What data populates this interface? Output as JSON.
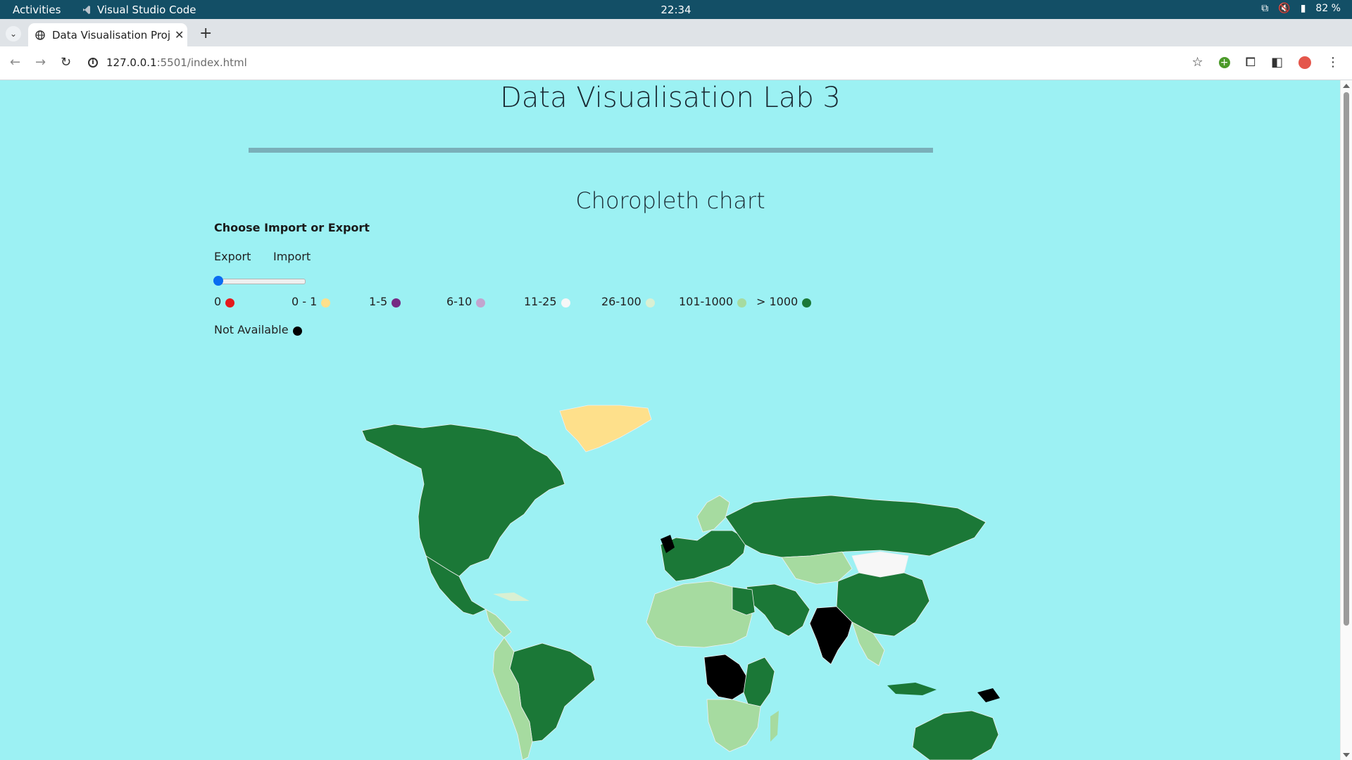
{
  "os": {
    "activities": "Activities",
    "app_name": "Visual Studio Code",
    "clock": "22:34",
    "battery": "82 %"
  },
  "browser": {
    "tab_title": "Data Visualisation Proje",
    "url_host": "127.0.0.1",
    "url_path": ":5501/index.html"
  },
  "page": {
    "title": "Data Visualisation Lab 3",
    "chart_title": "Choropleth chart",
    "choose_label": "Choose Import or Export",
    "option_export": "Export",
    "option_import": "Import",
    "slider_value": 0
  },
  "legend": [
    {
      "label": "0",
      "color": "#e41a1c"
    },
    {
      "label": "0 - 1",
      "color": "#fee08b"
    },
    {
      "label": "1-5",
      "color": "#762a83"
    },
    {
      "label": "6-10",
      "color": "#c2a5cf"
    },
    {
      "label": "11-25",
      "color": "#f7f7f7"
    },
    {
      "label": "26-100",
      "color": "#d9f0d3"
    },
    {
      "label": "101-1000",
      "color": "#a6dba0"
    },
    {
      "label": "> 1000",
      "color": "#1b7837"
    },
    {
      "label": "Not Available",
      "color": "#000000"
    }
  ],
  "map_colors": {
    "ocean": "#9cf1f3",
    "high": "#1b7837",
    "mid": "#a6dba0",
    "low": "#d9f0d3",
    "very_low": "#fee08b",
    "na": "#000000",
    "white": "#f7f7f7",
    "lilac": "#c2a5cf"
  }
}
